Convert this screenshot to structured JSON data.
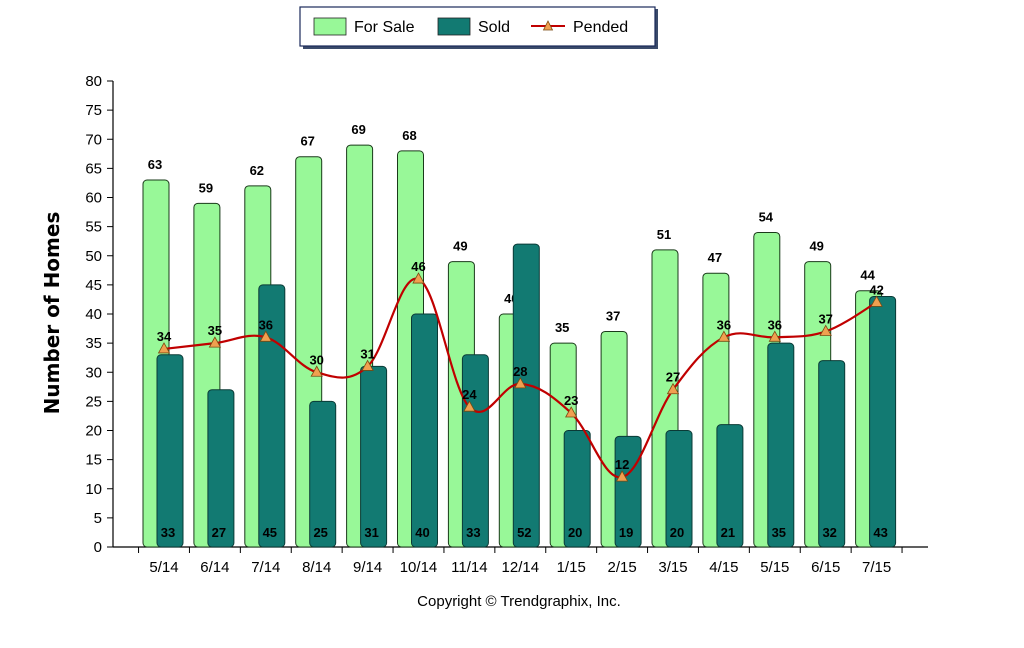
{
  "chart_data": {
    "type": "bar",
    "categories": [
      "5/14",
      "6/14",
      "7/14",
      "8/14",
      "9/14",
      "10/14",
      "11/14",
      "12/14",
      "1/15",
      "2/15",
      "3/15",
      "4/15",
      "5/15",
      "6/15",
      "7/15"
    ],
    "series": [
      {
        "name": "For Sale",
        "type": "bar",
        "color": "#98f898",
        "values": [
          63,
          59,
          62,
          67,
          69,
          68,
          49,
          40,
          35,
          37,
          51,
          47,
          54,
          49,
          44
        ]
      },
      {
        "name": "Sold",
        "type": "bar",
        "color": "#127a72",
        "values": [
          33,
          27,
          45,
          25,
          31,
          40,
          33,
          52,
          20,
          19,
          20,
          21,
          35,
          32,
          43
        ]
      },
      {
        "name": "Pended",
        "type": "line",
        "color": "#c00000",
        "marker_color": "#f0a050",
        "values": [
          34,
          35,
          36,
          30,
          31,
          46,
          24,
          28,
          23,
          12,
          27,
          36,
          36,
          37,
          42
        ]
      }
    ],
    "ylabel": "Number of Homes",
    "xlabel": "",
    "ylim": [
      0,
      80
    ],
    "ytick_step": 5,
    "legend_position": "top-center",
    "grid": false
  },
  "footer": {
    "copyright": "Copyright © Trendgraphix, Inc."
  }
}
